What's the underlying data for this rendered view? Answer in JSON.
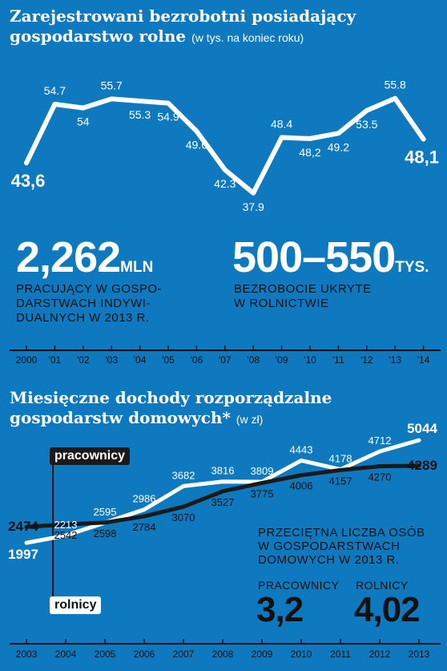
{
  "chart1": {
    "title_line1": "Zarejestrowani bezrobotni posiadający",
    "title_line2": "gospodarstwo rolne",
    "unit": "(w tys. na koniec roku)"
  },
  "stats": {
    "employed_value": "2,262",
    "employed_unit": "MLN",
    "employed_caption": [
      "PRACUJĄCY W GOSPO-",
      "DARSTWACH INDYWI-",
      "DUALNYCH W 2013 R."
    ],
    "hidden_value": "500–550",
    "hidden_unit": "TYS.",
    "hidden_caption": [
      "BEZROBOCIE UKRYTE",
      "W ROLNICTWIE"
    ]
  },
  "chart2": {
    "title_line1": "Miesięczne dochody rozporządzalne",
    "title_line2": "gospodarstw domowych*",
    "unit": "(w zł)",
    "tag_workers": "pracownicy",
    "tag_farmers": "rolnicy",
    "avg_title": [
      "PRZECIĘTNA LICZBA OSÓB",
      "W GOSPODARSTWACH",
      "DOMOWYCH W 2013 R."
    ],
    "avg_workers_label": "PRACOWNICY",
    "avg_workers_value": "3,2",
    "avg_farmers_label": "ROLNICY",
    "avg_farmers_value": "4,02"
  },
  "chart_data": [
    {
      "type": "line",
      "title": "Zarejestrowani bezrobotni posiadający gospodarstwo rolne",
      "subtitle": "(w tys. na koniec roku)",
      "x": [
        "2000",
        "'01",
        "'02",
        "'03",
        "'04",
        "'05",
        "'06",
        "'07",
        "'08",
        "'09",
        "'10",
        "'11",
        "'12",
        "'13",
        "'14"
      ],
      "values": [
        43.6,
        54.7,
        54,
        55.7,
        55.3,
        54.9,
        49.6,
        42.3,
        37.9,
        48.4,
        48.2,
        49.2,
        53.5,
        55.8,
        48.1
      ],
      "labels": [
        "43,6",
        "54.7",
        "54",
        "55.7",
        "55.3",
        "54.9",
        "49.6",
        "42.3",
        "37.9",
        "48.4",
        "48,2",
        "49.2",
        "53.5",
        "55.8",
        "48,1"
      ],
      "ylim": [
        35,
        60
      ],
      "color": "#ffffff"
    },
    {
      "type": "line",
      "title": "Miesięczne dochody rozporządzalne gospodarstw domowych*",
      "subtitle": "(w zł)",
      "x": [
        "2003",
        "2004",
        "2005",
        "2006",
        "2007",
        "2008",
        "2009",
        "2010",
        "2011",
        "2012",
        "2013"
      ],
      "series": [
        {
          "name": "rolnicy",
          "values": [
            1997,
            2213,
            2595,
            2986,
            3682,
            3816,
            3809,
            4443,
            4178,
            4712,
            5044
          ],
          "color": "#ffffff"
        },
        {
          "name": "pracownicy",
          "values": [
            2474,
            2542,
            2598,
            2784,
            3070,
            3527,
            3775,
            4006,
            4157,
            4270,
            4289
          ],
          "color": "#1a1a1a"
        }
      ],
      "ylim": [
        1500,
        5500
      ]
    }
  ]
}
